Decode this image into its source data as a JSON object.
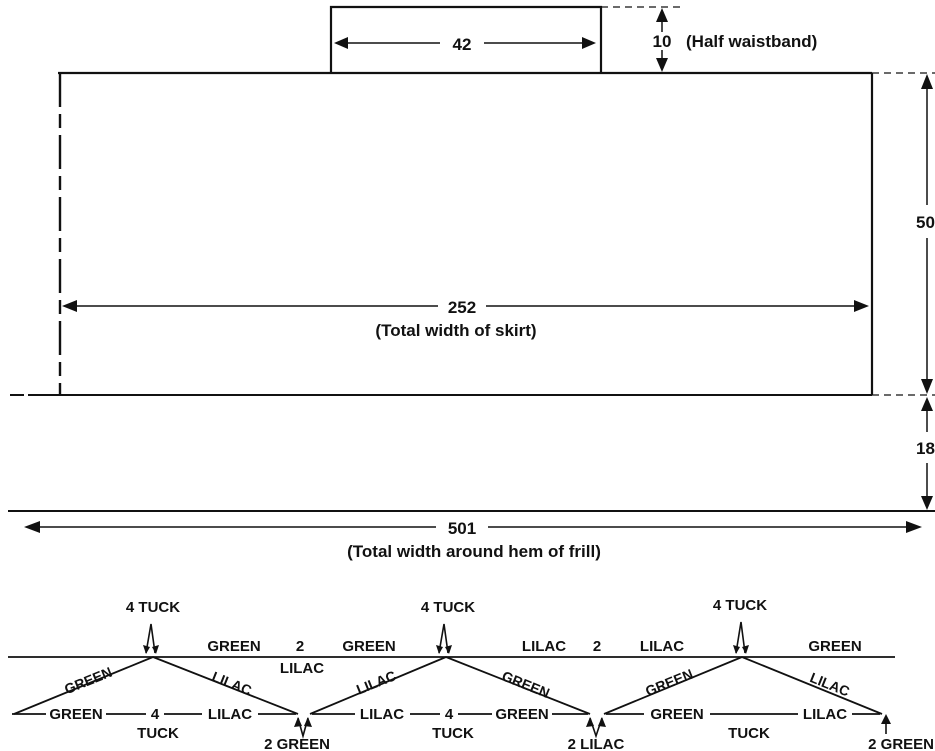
{
  "waistband": {
    "width_value": "42",
    "height_value": "10",
    "caption": "(Half waistband)"
  },
  "skirt": {
    "width_value": "252",
    "width_caption": "(Total width of skirt)",
    "height_value": "50"
  },
  "frill": {
    "height_value": "18",
    "width_value": "501",
    "width_caption": "(Total width around hem of frill)"
  },
  "tuck_pattern": {
    "top_tucks": [
      "4 TUCK",
      "4 TUCK",
      "4 TUCK"
    ],
    "upper_row": [
      {
        "id": "upper-1",
        "text": "GREEN"
      },
      {
        "id": "upper-2",
        "text": "2"
      },
      {
        "id": "upper-3",
        "text": "GREEN"
      },
      {
        "id": "upper-4",
        "text": "LILAC"
      },
      {
        "id": "upper-5",
        "text": "2"
      },
      {
        "id": "upper-6",
        "text": "LILAC"
      },
      {
        "id": "upper-7",
        "text": "GREEN"
      }
    ],
    "upper_sub": "LILAC",
    "lower_row": [
      {
        "id": "lower-1",
        "text": "GREEN"
      },
      {
        "id": "lower-2",
        "text": "4"
      },
      {
        "id": "lower-3",
        "text": "LILAC"
      },
      {
        "id": "lower-4",
        "text": "LILAC"
      },
      {
        "id": "lower-5",
        "text": "4"
      },
      {
        "id": "lower-6",
        "text": "GREEN"
      },
      {
        "id": "lower-7",
        "text": "GREEN"
      },
      {
        "id": "lower-8",
        "text": "LILAC"
      }
    ],
    "lower_tucks": [
      "TUCK",
      "TUCK",
      "TUCK"
    ],
    "bottom_labels": [
      "2 GREEN",
      "2 LILAC",
      "2 GREEN"
    ],
    "diagonals": [
      {
        "id": "diag-1",
        "text": "GREEN"
      },
      {
        "id": "diag-2",
        "text": "LILAC"
      },
      {
        "id": "diag-3",
        "text": "LILAC"
      },
      {
        "id": "diag-4",
        "text": "GREEN"
      },
      {
        "id": "diag-5",
        "text": "GREEN"
      },
      {
        "id": "diag-6",
        "text": "LILAC"
      }
    ]
  }
}
